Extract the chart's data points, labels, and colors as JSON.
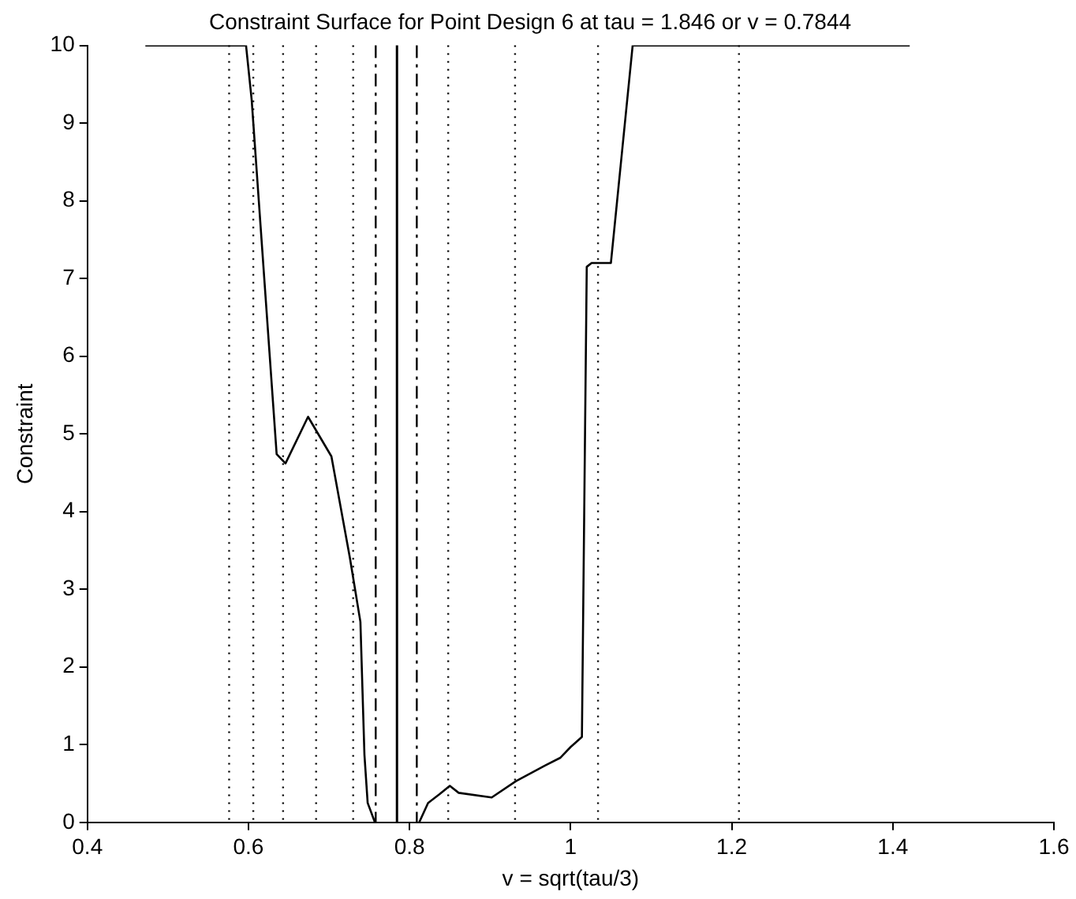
{
  "chart_data": {
    "type": "line",
    "title": "Constraint Surface for Point Design 6 at tau = 1.846 or v = 0.7844",
    "xlabel": "v = sqrt(tau/3)",
    "ylabel": "Constraint",
    "xlim": [
      0.4,
      1.6
    ],
    "xticks": [
      0.4,
      0.6,
      0.8,
      1,
      1.2,
      1.4,
      1.6
    ],
    "ylim": [
      0,
      10
    ],
    "yticks": [
      0,
      1,
      2,
      3,
      4,
      5,
      6,
      7,
      8,
      9,
      10
    ],
    "grid": false,
    "legend": false,
    "marker": "none",
    "line_style": "solid",
    "series": [
      {
        "color": "#000000",
        "x": [
          0.472,
          0.597,
          0.604,
          0.635,
          0.646,
          0.674,
          0.703,
          0.726,
          0.739,
          0.744,
          0.748,
          0.757,
          0.785,
          0.812,
          0.823,
          0.837,
          0.85,
          0.861,
          0.902,
          0.932,
          0.968,
          0.987,
          1.0,
          1.014,
          1.02,
          1.026,
          1.05,
          1.077,
          1.421
        ],
        "values": [
          10,
          10,
          9.3,
          4.74,
          4.62,
          5.22,
          4.71,
          3.4,
          2.58,
          0.87,
          0.25,
          0,
          null,
          0,
          0.25,
          0.36,
          0.47,
          0.38,
          0.32,
          0.53,
          0.73,
          0.83,
          0.97,
          1.1,
          7.15,
          7.2,
          7.2,
          10,
          10
        ]
      }
    ],
    "ref_lines": [
      {
        "axis": "x",
        "value": 0.576,
        "color": "#000000",
        "line_style": "dotted"
      },
      {
        "axis": "x",
        "value": 0.606,
        "color": "#000000",
        "line_style": "dotted"
      },
      {
        "axis": "x",
        "value": 0.643,
        "color": "#000000",
        "line_style": "dotted"
      },
      {
        "axis": "x",
        "value": 0.684,
        "color": "#000000",
        "line_style": "dotted"
      },
      {
        "axis": "x",
        "value": 0.73,
        "color": "#000000",
        "line_style": "dotted"
      },
      {
        "axis": "x",
        "value": 0.758,
        "color": "#000000",
        "line_style": "dashed"
      },
      {
        "axis": "x",
        "value": 0.7844,
        "color": "#000000",
        "line_style": "solid"
      },
      {
        "axis": "x",
        "value": 0.809,
        "color": "#000000",
        "line_style": "dashed"
      },
      {
        "axis": "x",
        "value": 0.848,
        "color": "#000000",
        "line_style": "dotted"
      },
      {
        "axis": "x",
        "value": 0.931,
        "color": "#000000",
        "line_style": "dotted"
      },
      {
        "axis": "x",
        "value": 1.034,
        "color": "#000000",
        "line_style": "dotted"
      },
      {
        "axis": "x",
        "value": 1.209,
        "color": "#000000",
        "line_style": "dotted"
      }
    ]
  }
}
